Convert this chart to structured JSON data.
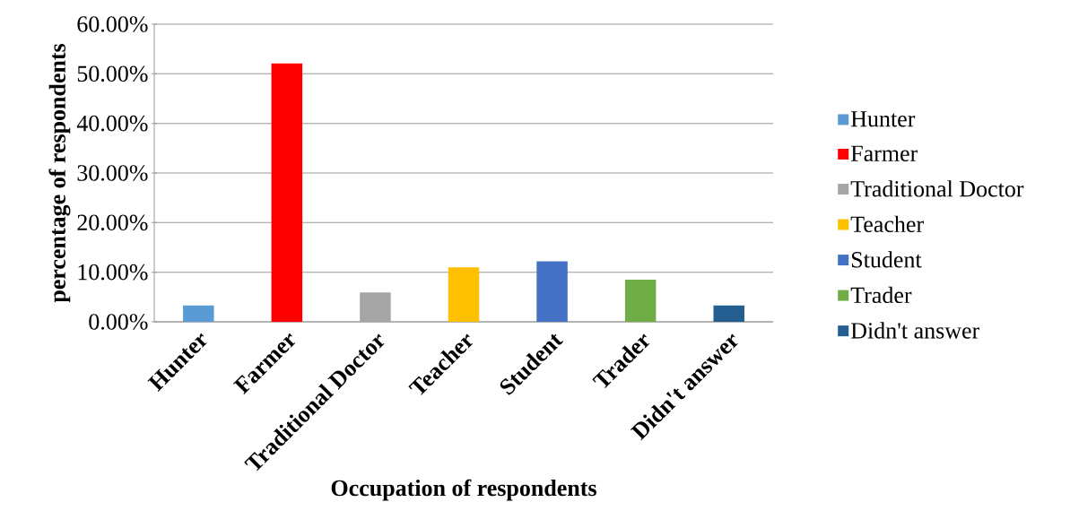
{
  "chart_data": {
    "type": "bar",
    "xlabel": "Occupation of respondents",
    "ylabel": "percentage of respondents",
    "categories": [
      "Hunter",
      "Farmer",
      "Traditional Doctor",
      "Teacher",
      "Student",
      "Trader",
      "Didn't answer"
    ],
    "series": [
      {
        "name": "Hunter",
        "color": "#5b9bd5",
        "values": [
          3.3,
          null,
          null,
          null,
          null,
          null,
          null
        ]
      },
      {
        "name": "Farmer",
        "color": "#ff0000",
        "values": [
          null,
          52.1,
          null,
          null,
          null,
          null,
          null
        ]
      },
      {
        "name": "Traditional Doctor",
        "color": "#a5a5a5",
        "values": [
          null,
          null,
          5.9,
          null,
          null,
          null,
          null
        ]
      },
      {
        "name": "Teacher",
        "color": "#ffc000",
        "values": [
          null,
          null,
          null,
          11.0,
          null,
          null,
          null
        ]
      },
      {
        "name": "Student",
        "color": "#4472c4",
        "values": [
          null,
          null,
          null,
          null,
          12.2,
          null,
          null
        ]
      },
      {
        "name": "Trader",
        "color": "#70ad47",
        "values": [
          null,
          null,
          null,
          null,
          null,
          8.5,
          null
        ]
      },
      {
        "name": "Didn't answer",
        "color": "#255e91",
        "values": [
          null,
          null,
          null,
          null,
          null,
          null,
          3.3
        ]
      }
    ],
    "ylim": [
      0,
      60
    ],
    "yticks": [
      {
        "value": 0,
        "label": "0.00%"
      },
      {
        "value": 10,
        "label": "10.00%"
      },
      {
        "value": 20,
        "label": "20.00%"
      },
      {
        "value": 30,
        "label": "30.00%"
      },
      {
        "value": 40,
        "label": "40.00%"
      },
      {
        "value": 50,
        "label": "50.00%"
      },
      {
        "value": 60,
        "label": "60.00%"
      }
    ],
    "grid": "y",
    "legend": "right"
  }
}
